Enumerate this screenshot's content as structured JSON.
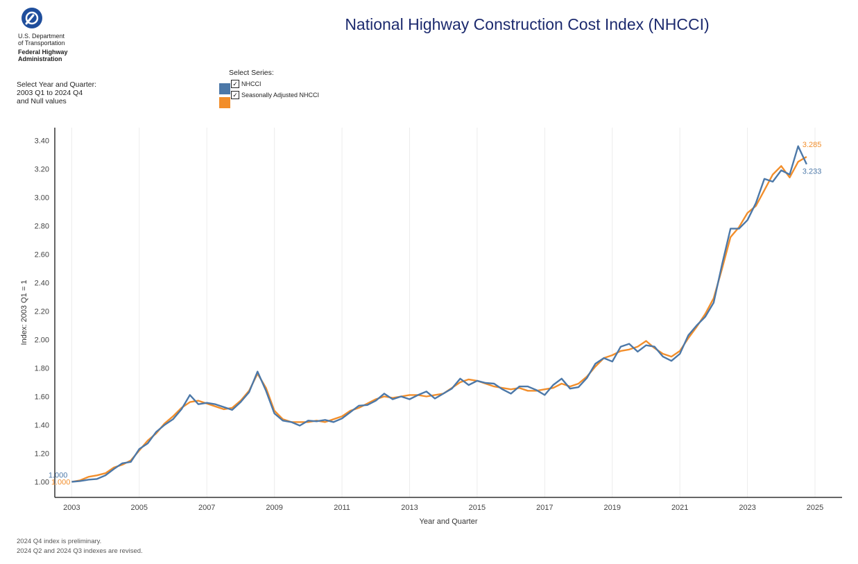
{
  "header": {
    "agency_line1": "U.S. Department",
    "agency_line2": "of Transportation",
    "agency_line3": "Federal Highway",
    "agency_line4": "Administration"
  },
  "filters": {
    "year_quarter_label": "Select Year and Quarter:",
    "year_quarter_range": "2003 Q1 to 2024 Q4",
    "year_quarter_nulls": "and Null values",
    "series_label": "Select Series:",
    "series": [
      {
        "name": "NHCCI",
        "checked": true,
        "color": "#4c78a8"
      },
      {
        "name": "Seasonally Adjusted NHCCI",
        "checked": true,
        "color": "#f28e2b"
      }
    ]
  },
  "footnotes": {
    "line1": "2024 Q4 index is preliminary.",
    "line2": "2024 Q2 and 2024 Q3 indexes are revised."
  },
  "chart_data": {
    "type": "line",
    "title": "National Highway Construction Cost Index (NHCCI)",
    "xlabel": "Year and Quarter",
    "ylabel": "Index: 2003 Q1 = 1",
    "xlim": [
      2002.5,
      2025.8
    ],
    "ylim": [
      0.89,
      3.49
    ],
    "yticks": [
      1.0,
      1.2,
      1.4,
      1.6,
      1.8,
      2.0,
      2.2,
      2.4,
      2.6,
      2.8,
      3.0,
      3.2,
      3.4
    ],
    "ytick_labels": [
      "1.00",
      "1.20",
      "1.40",
      "1.60",
      "1.80",
      "2.00",
      "2.20",
      "2.40",
      "2.60",
      "2.80",
      "3.00",
      "3.20",
      "3.40"
    ],
    "xticks": [
      2003,
      2005,
      2007,
      2009,
      2011,
      2013,
      2015,
      2017,
      2019,
      2021,
      2023,
      2025
    ],
    "xtick_labels": [
      "2003",
      "2005",
      "2007",
      "2009",
      "2011",
      "2013",
      "2015",
      "2017",
      "2019",
      "2021",
      "2023",
      "2025"
    ],
    "start_year": 2003,
    "series": [
      {
        "name": "NHCCI",
        "color": "#4c78a8",
        "start_label": "1.000",
        "end_label": "3.233",
        "values": [
          1.0,
          1.005,
          1.015,
          1.02,
          1.045,
          1.09,
          1.13,
          1.14,
          1.23,
          1.27,
          1.35,
          1.4,
          1.44,
          1.51,
          1.61,
          1.545,
          1.555,
          1.545,
          1.525,
          1.505,
          1.56,
          1.63,
          1.775,
          1.64,
          1.48,
          1.43,
          1.42,
          1.395,
          1.43,
          1.425,
          1.435,
          1.42,
          1.445,
          1.49,
          1.535,
          1.54,
          1.57,
          1.62,
          1.58,
          1.6,
          1.58,
          1.61,
          1.635,
          1.585,
          1.62,
          1.655,
          1.725,
          1.68,
          1.71,
          1.695,
          1.69,
          1.65,
          1.62,
          1.67,
          1.67,
          1.645,
          1.61,
          1.68,
          1.725,
          1.655,
          1.665,
          1.73,
          1.83,
          1.87,
          1.845,
          1.95,
          1.97,
          1.915,
          1.96,
          1.95,
          1.88,
          1.85,
          1.9,
          2.03,
          2.1,
          2.16,
          2.26,
          2.53,
          2.78,
          2.78,
          2.84,
          2.96,
          3.13,
          3.11,
          3.19,
          3.16,
          3.36,
          3.233
        ]
      },
      {
        "name": "Seasonally Adjusted NHCCI",
        "color": "#f28e2b",
        "start_label": "1.000",
        "end_label": "3.285",
        "values": [
          1.0,
          1.01,
          1.035,
          1.045,
          1.06,
          1.1,
          1.12,
          1.15,
          1.22,
          1.29,
          1.34,
          1.41,
          1.46,
          1.52,
          1.56,
          1.57,
          1.55,
          1.53,
          1.51,
          1.52,
          1.57,
          1.64,
          1.76,
          1.66,
          1.5,
          1.44,
          1.42,
          1.42,
          1.42,
          1.43,
          1.42,
          1.44,
          1.46,
          1.5,
          1.52,
          1.55,
          1.58,
          1.6,
          1.59,
          1.6,
          1.61,
          1.61,
          1.6,
          1.61,
          1.62,
          1.66,
          1.7,
          1.72,
          1.71,
          1.69,
          1.67,
          1.66,
          1.65,
          1.66,
          1.64,
          1.64,
          1.65,
          1.66,
          1.69,
          1.67,
          1.69,
          1.74,
          1.81,
          1.87,
          1.89,
          1.92,
          1.93,
          1.95,
          1.99,
          1.94,
          1.9,
          1.88,
          1.92,
          2.01,
          2.09,
          2.18,
          2.29,
          2.5,
          2.72,
          2.79,
          2.89,
          2.94,
          3.05,
          3.16,
          3.22,
          3.14,
          3.25,
          3.285
        ]
      }
    ]
  }
}
